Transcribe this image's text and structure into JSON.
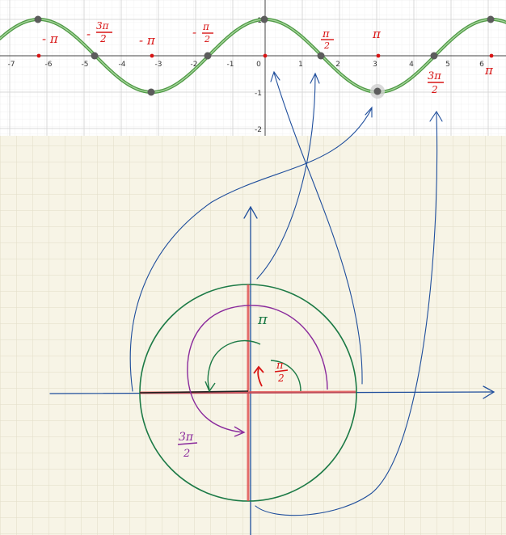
{
  "graph": {
    "x_ticks": [
      "-7",
      "-6",
      "-5",
      "-4",
      "-3",
      "-2",
      "-1",
      "0",
      "1",
      "2",
      "3",
      "4",
      "5",
      "6"
    ],
    "y_ticks": [
      "1",
      "-1",
      "-2"
    ],
    "handwritten": {
      "neg_pi_left": "- π",
      "neg_3pi_2_sign": "-",
      "neg_3pi_2_num": "3π",
      "neg_3pi_2_den": "2",
      "neg_pi": "- π",
      "neg_pi_2_sign": "-",
      "neg_pi_2_num": "π",
      "neg_pi_2_den": "2",
      "pi_2_num": "π",
      "pi_2_den": "2",
      "pi": "π",
      "three_pi_2_num": "3π",
      "three_pi_2_den": "2",
      "pi_right": "π"
    },
    "colors": {
      "curve": "#4f9a45",
      "points": "#5c5c5c",
      "markers": "#d81414"
    }
  },
  "circle": {
    "labels": {
      "pi": "π",
      "pi_over_2_num": "π",
      "pi_over_2_den": "2",
      "three_pi_over_2_num": "3π",
      "three_pi_over_2_den": "2"
    },
    "colors": {
      "axes": "#1f4e9c",
      "circle": "#1c7a46",
      "spiral": "#8a2a9c",
      "radius": "#e04a4a",
      "paper": "#f7f4e6",
      "grid": "#e5e1cf"
    }
  }
}
